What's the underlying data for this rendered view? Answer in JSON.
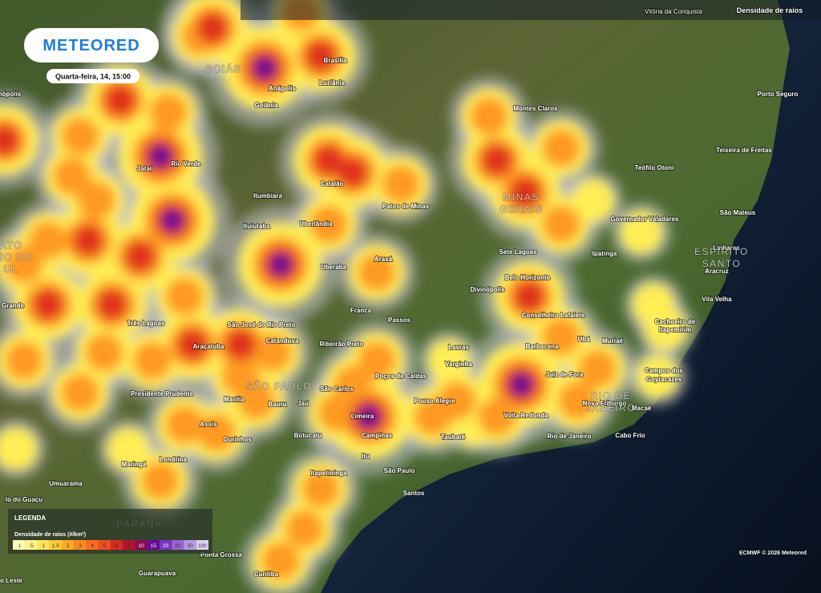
{
  "header": {
    "title": "Densidade de raios",
    "location": "Vitória da Conquista"
  },
  "logo": "METEORED",
  "date": "Quarta-feira, 14, 15:00",
  "places": [
    "Brasília",
    "Anápolis",
    "Luziânia",
    "Goiânia",
    "Montes Claros",
    "Porto Seguro",
    "Teixeira de Freitas",
    "Rio Verde",
    "Jataí",
    "Teófilo Otoni",
    "Itumbiara",
    "Catalão",
    "Patos de Minas",
    "Governador Valadares",
    "São Mateus",
    "Ituiutaba",
    "Uberlândia",
    "Sete Lagoas",
    "Ipatinga",
    "Linhares",
    "Uberaba",
    "Araxá",
    "Aracruz",
    "Belo Horizonte",
    "Divinópolis",
    "Vila Velha",
    "Franca",
    "Passos",
    "Conselheiro Lafaiete",
    "Cachoeiro de",
    "Itapemirim",
    "Três Lagoas",
    "São José do Rio Preto",
    "Grande",
    "Araçatuba",
    "Catanduva",
    "Ribeirão Preto",
    "Lavras",
    "Barbacena",
    "Ubá",
    "Muriaé",
    "Varginha",
    "Campos dos",
    "Goytacazes",
    "Poços de Caldas",
    "Juiz de Fora",
    "São Carlos",
    "Presidente Prudente",
    "Marília",
    "Pouso Alegre",
    "Nova Friburgo",
    "Bauru",
    "Jaú",
    "Macaé",
    "Limeira",
    "Volta Redonda",
    "Assis",
    "Campinas",
    "Botucatu",
    "Taubaté",
    "Rio de Janeiro",
    "Cabo Frio",
    "Ourinhos",
    "Itu",
    "Londrina",
    "Maringá",
    "São Paulo",
    "Umuarama",
    "Itapetininga",
    "Santos",
    "lo do Guaçu",
    "Ponta Grossa",
    "Guarapuava",
    "Curitiba",
    "o Leste",
    "nópolis"
  ],
  "regions": [
    [
      "GOIÁS"
    ],
    [
      "MINAS",
      "GERAIS"
    ],
    [
      "ESPÍRITO",
      "SANTO"
    ],
    [
      "ATO",
      "SSO DO",
      "UL"
    ],
    [
      "SÃO PAULO"
    ],
    [
      "RIO DE",
      "JANEIRO"
    ],
    [
      "PARANÁ"
    ]
  ],
  "legend": {
    "title": "LEGENDA",
    "subtitle": "Densidade de raios (#/km²)",
    "bins": [
      {
        "label": ".1",
        "color": "#ffffb8"
      },
      {
        "label": ".5",
        "color": "#fff38a"
      },
      {
        "label": "1",
        "color": "#ffe45a"
      },
      {
        "label": "1.5",
        "color": "#ffcc33"
      },
      {
        "label": "2",
        "color": "#ffaa22"
      },
      {
        "label": "3",
        "color": "#ff8a1e"
      },
      {
        "label": "4",
        "color": "#ff6a1e"
      },
      {
        "label": "5",
        "color": "#f24a1e"
      },
      {
        "label": "6",
        "color": "#d82a22"
      },
      {
        "label": "8",
        "color": "#b5122e"
      },
      {
        "label": "10",
        "color": "#8a0a55"
      },
      {
        "label": "15",
        "color": "#6a0a9a"
      },
      {
        "label": "20",
        "color": "#7a34c2"
      },
      {
        "label": "30",
        "color": "#9a62d4"
      },
      {
        "label": "50",
        "color": "#bb96e2"
      },
      {
        "label": "100",
        "color": "#dcd0f2"
      }
    ]
  },
  "credit": "ECMWF © 2026 Meteored"
}
